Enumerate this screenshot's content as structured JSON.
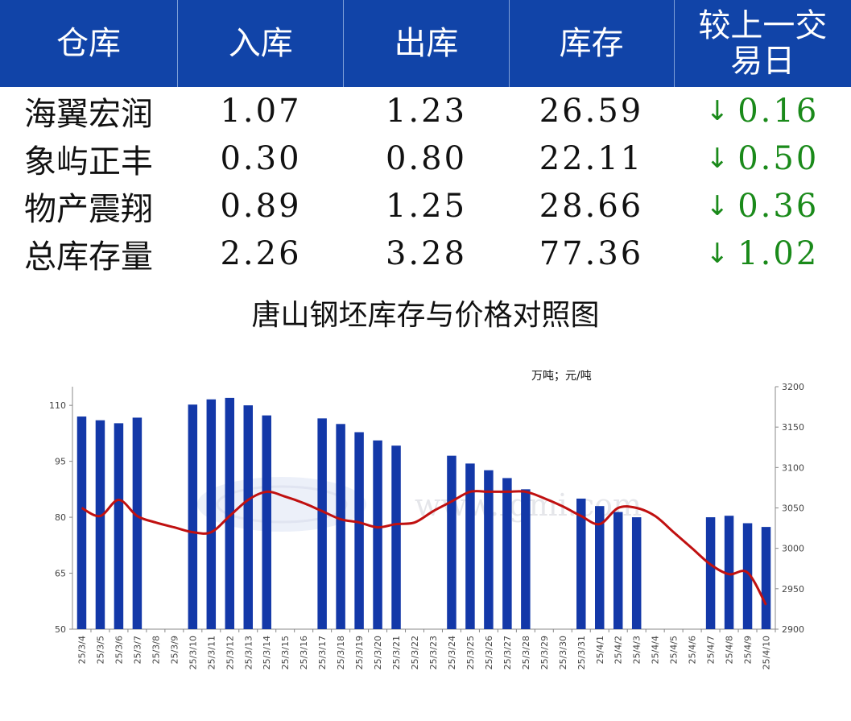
{
  "table": {
    "headers": [
      "仓库",
      "入库",
      "出库",
      "库存",
      "较上一交易日"
    ],
    "rows": [
      {
        "name": "海翼宏润",
        "in": "1.07",
        "out": "1.23",
        "stock": "26.59",
        "change": "0.16",
        "direction": "down"
      },
      {
        "name": "象屿正丰",
        "in": "0.30",
        "out": "0.80",
        "stock": "22.11",
        "change": "0.50",
        "direction": "down"
      },
      {
        "name": "物产震翔",
        "in": "0.89",
        "out": "1.25",
        "stock": "28.66",
        "change": "0.36",
        "direction": "down"
      },
      {
        "name": "总库存量",
        "in": "2.26",
        "out": "3.28",
        "stock": "77.36",
        "change": "1.02",
        "direction": "down"
      }
    ],
    "arrow_glyph": "↓",
    "colors": {
      "header_bg": "#1144a8",
      "header_text": "#ffffff",
      "change_text": "#1a8a1a"
    }
  },
  "chart_data": {
    "type": "bar+line",
    "title": "唐山钢坯库存与价格对照图",
    "unit_label": "万吨；元/吨",
    "categories": [
      "25/3/4",
      "25/3/5",
      "25/3/6",
      "25/3/7",
      "25/3/8",
      "25/3/9",
      "25/3/10",
      "25/3/11",
      "25/3/12",
      "25/3/13",
      "25/3/14",
      "25/3/15",
      "25/3/16",
      "25/3/17",
      "25/3/18",
      "25/3/19",
      "25/3/20",
      "25/3/21",
      "25/3/22",
      "25/3/23",
      "25/3/24",
      "25/3/25",
      "25/3/26",
      "25/3/27",
      "25/3/28",
      "25/3/29",
      "25/3/30",
      "25/3/31",
      "25/4/1",
      "25/4/2",
      "25/4/3",
      "25/4/4",
      "25/4/5",
      "25/4/6",
      "25/4/7",
      "25/4/8",
      "25/4/9",
      "25/4/10"
    ],
    "bars": [
      107,
      106,
      105.2,
      106.7,
      null,
      null,
      110.2,
      111.6,
      112,
      110,
      107.3,
      null,
      null,
      106.5,
      105,
      102.8,
      100.6,
      99.2,
      null,
      null,
      96.5,
      94.4,
      92.6,
      90.5,
      87.5,
      null,
      null,
      85,
      83,
      81.4,
      80,
      null,
      null,
      null,
      80,
      80.4,
      78.4,
      77.4
    ],
    "line": [
      3050,
      3040,
      3060,
      3040,
      3032,
      3026,
      3020,
      3020,
      3040,
      3060,
      3070,
      3064,
      3056,
      3046,
      3036,
      3032,
      3026,
      3030,
      3032,
      3046,
      3058,
      3070,
      3070,
      3070,
      3070,
      3062,
      3052,
      3040,
      3030,
      3050,
      3050,
      3040,
      3020,
      3000,
      2980,
      2968,
      2970,
      2930
    ],
    "y_left": {
      "min": 50,
      "max": 115,
      "ticks": [
        50,
        65,
        80,
        95,
        110
      ]
    },
    "y_right": {
      "min": 2900,
      "max": 3200,
      "ticks": [
        2900,
        2950,
        3000,
        3050,
        3100,
        3150,
        3200
      ]
    },
    "colors": {
      "bar": "#1338a8",
      "line": "#c01010"
    },
    "grid": false,
    "legend": "none"
  }
}
